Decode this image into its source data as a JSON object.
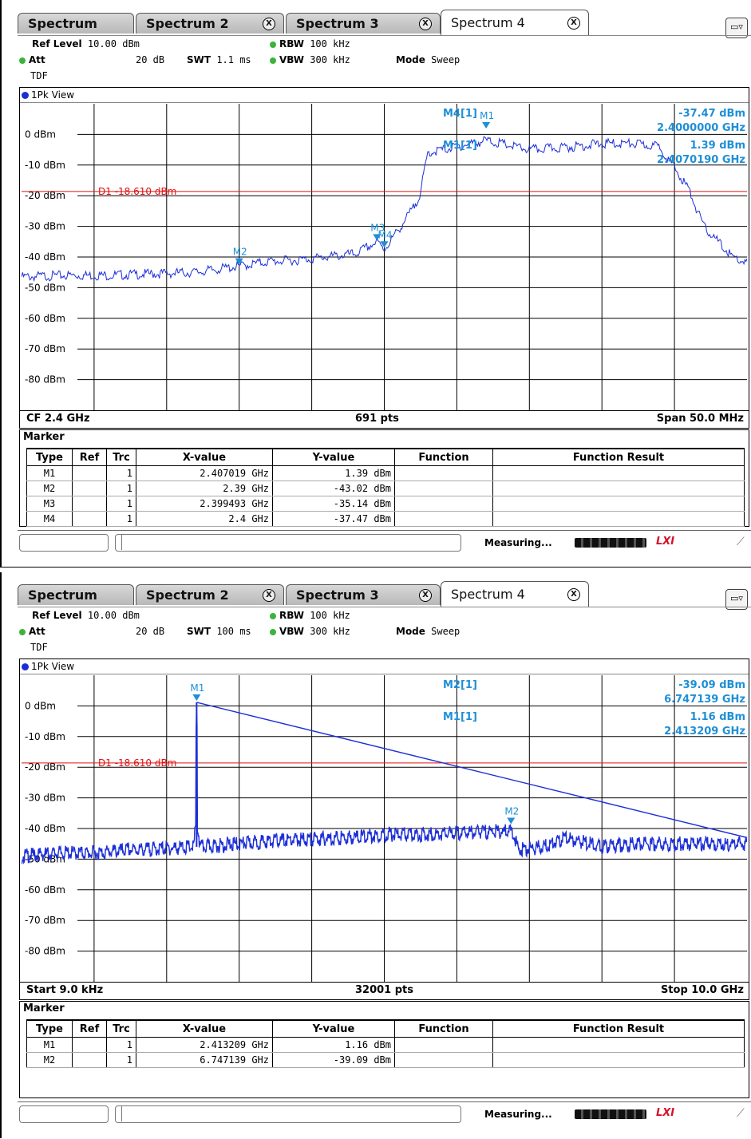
{
  "panels": [
    {
      "tabs": [
        {
          "label": "Spectrum",
          "active": false,
          "closable": false
        },
        {
          "label": "Spectrum 2",
          "active": false,
          "closable": true
        },
        {
          "label": "Spectrum 3",
          "active": false,
          "closable": true
        },
        {
          "label": "Spectrum 4",
          "active": true,
          "closable": true
        }
      ],
      "close_glyph": "X",
      "info": {
        "ref_level_label": "Ref Level",
        "ref_level_value": "10.00 dBm",
        "att_label": "Att",
        "att_value": "20 dB",
        "swt_label": "SWT",
        "swt_value": "1.1 ms",
        "rbw_label": "RBW",
        "rbw_value": "100 kHz",
        "vbw_label": "VBW",
        "vbw_value": "300 kHz",
        "mode_label": "Mode",
        "mode_value": "Sweep",
        "tdf": "TDF"
      },
      "view_title": "1Pk View",
      "footer": {
        "left": "CF 2.4 GHz",
        "center": "691 pts",
        "right": "Span 50.0 MHz"
      },
      "marker_title": "Marker",
      "marker_headers": [
        "Type",
        "Ref",
        "Trc",
        "X-value",
        "Y-value",
        "Function",
        "Function Result"
      ],
      "marker_rows": [
        {
          "type": "M1",
          "ref": "",
          "trc": "1",
          "x": "2.407019 GHz",
          "y": "1.39 dBm",
          "func": "",
          "result": ""
        },
        {
          "type": "M2",
          "ref": "",
          "trc": "1",
          "x": "2.39 GHz",
          "y": "-43.02 dBm",
          "func": "",
          "result": ""
        },
        {
          "type": "M3",
          "ref": "",
          "trc": "1",
          "x": "2.399493 GHz",
          "y": "-35.14 dBm",
          "func": "",
          "result": ""
        },
        {
          "type": "M4",
          "ref": "",
          "trc": "1",
          "x": "2.4 GHz",
          "y": "-37.47 dBm",
          "func": "",
          "result": ""
        }
      ],
      "status": {
        "measuring": "Measuring...",
        "lxi": "LXI"
      },
      "readouts": [
        {
          "label": "M4[1]",
          "level": "-37.47 dBm",
          "freq": "2.4000000 GHz"
        },
        {
          "label": "M1[1]",
          "level": "1.39 dBm",
          "freq": "2.4070190 GHz"
        }
      ],
      "display_line": {
        "label": "D1",
        "value": "-18.610 dBm",
        "level": -18.61
      },
      "chart_data": {
        "type": "line",
        "y_tick_labels": [
          "0 dBm",
          "-10 dBm",
          "-20 dBm",
          "-30 dBm",
          "-40 dBm",
          "-50 dBm",
          "-60 dBm",
          "-70 dBm",
          "-80 dBm"
        ],
        "y_ticks": [
          0,
          -10,
          -20,
          -30,
          -40,
          -50,
          -60,
          -70,
          -80
        ],
        "ylim": [
          -90,
          10
        ],
        "xlim": [
          2.375,
          2.425
        ],
        "x_unit": "GHz",
        "trace": {
          "x": [
            2.375,
            2.378,
            2.381,
            2.384,
            2.387,
            2.39,
            2.392,
            2.394,
            2.396,
            2.398,
            2.3995,
            2.4,
            2.401,
            2.402,
            2.4025,
            2.403,
            2.405,
            2.407,
            2.41,
            2.413,
            2.415,
            2.417,
            2.419,
            2.421,
            2.422,
            2.424,
            2.425
          ],
          "y": [
            -46.5,
            -46,
            -46,
            -45.5,
            -45,
            -43,
            -41.5,
            -41,
            -40,
            -39,
            -35.1,
            -37.5,
            -31,
            -24,
            -19,
            -6,
            -4,
            -2,
            -5,
            -4,
            -3,
            -3,
            -4,
            -18,
            -30,
            -40,
            -42
          ]
        },
        "markers": [
          {
            "label": "M1",
            "x": 2.407019,
            "y": 1.39
          },
          {
            "label": "M2",
            "x": 2.39,
            "y": -43.02
          },
          {
            "label": "M3",
            "x": 2.399493,
            "y": -35.14
          },
          {
            "label": "M4",
            "x": 2.4,
            "y": -37.47
          }
        ]
      }
    },
    {
      "tabs": [
        {
          "label": "Spectrum",
          "active": false,
          "closable": false
        },
        {
          "label": "Spectrum 2",
          "active": false,
          "closable": true
        },
        {
          "label": "Spectrum 3",
          "active": false,
          "closable": true
        },
        {
          "label": "Spectrum 4",
          "active": true,
          "closable": true
        }
      ],
      "close_glyph": "X",
      "info": {
        "ref_level_label": "Ref Level",
        "ref_level_value": "10.00 dBm",
        "att_label": "Att",
        "att_value": "20 dB",
        "swt_label": "SWT",
        "swt_value": "100 ms",
        "rbw_label": "RBW",
        "rbw_value": "100 kHz",
        "vbw_label": "VBW",
        "vbw_value": "300 kHz",
        "mode_label": "Mode",
        "mode_value": "Sweep",
        "tdf": "TDF"
      },
      "view_title": "1Pk View",
      "footer": {
        "left": "Start 9.0 kHz",
        "center": "32001 pts",
        "right": "Stop 10.0 GHz"
      },
      "marker_title": "Marker",
      "marker_headers": [
        "Type",
        "Ref",
        "Trc",
        "X-value",
        "Y-value",
        "Function",
        "Function Result"
      ],
      "marker_rows": [
        {
          "type": "M1",
          "ref": "",
          "trc": "1",
          "x": "2.413209 GHz",
          "y": "1.16 dBm",
          "func": "",
          "result": ""
        },
        {
          "type": "M2",
          "ref": "",
          "trc": "1",
          "x": "6.747139 GHz",
          "y": "-39.09 dBm",
          "func": "",
          "result": ""
        }
      ],
      "status": {
        "measuring": "Measuring...",
        "lxi": "LXI"
      },
      "readouts": [
        {
          "label": "M2[1]",
          "level": "-39.09 dBm",
          "freq": "6.747139 GHz"
        },
        {
          "label": "M1[1]",
          "level": "1.16 dBm",
          "freq": "2.413209 GHz"
        }
      ],
      "display_line": {
        "label": "D1",
        "value": "-18.610 dBm",
        "level": -18.61
      },
      "chart_data": {
        "type": "line",
        "y_tick_labels": [
          "0 dBm",
          "-10 dBm",
          "-20 dBm",
          "-30 dBm",
          "-40 dBm",
          "-50 dBm",
          "-60 dBm",
          "-70 dBm",
          "-80 dBm"
        ],
        "y_ticks": [
          0,
          -10,
          -20,
          -30,
          -40,
          -50,
          -60,
          -70,
          -80
        ],
        "ylim": [
          -90,
          10
        ],
        "xlim": [
          9e-06,
          10.0
        ],
        "x_unit": "GHz",
        "trace": {
          "x": [
            9e-06,
            0.5,
            1.0,
            1.5,
            2.0,
            2.38,
            2.413209,
            2.45,
            3.0,
            3.5,
            4.0,
            4.5,
            5.0,
            5.5,
            6.0,
            6.5,
            6.747139,
            6.85,
            7.2,
            7.5,
            8.0,
            8.5,
            9.0,
            9.5,
            10.0
          ],
          "y": [
            -49,
            -48,
            -48,
            -47,
            -46.5,
            -46,
            1.16,
            -46,
            -45,
            -44,
            -43.5,
            -43,
            -42,
            -42,
            -41.5,
            -41,
            -39.09,
            -47,
            -46,
            -43,
            -46,
            -45,
            -45,
            -45,
            -45
          ]
        },
        "markers": [
          {
            "label": "M1",
            "x": 2.413209,
            "y": 1.16
          },
          {
            "label": "M2",
            "x": 6.747139,
            "y": -39.09
          }
        ]
      }
    }
  ]
}
